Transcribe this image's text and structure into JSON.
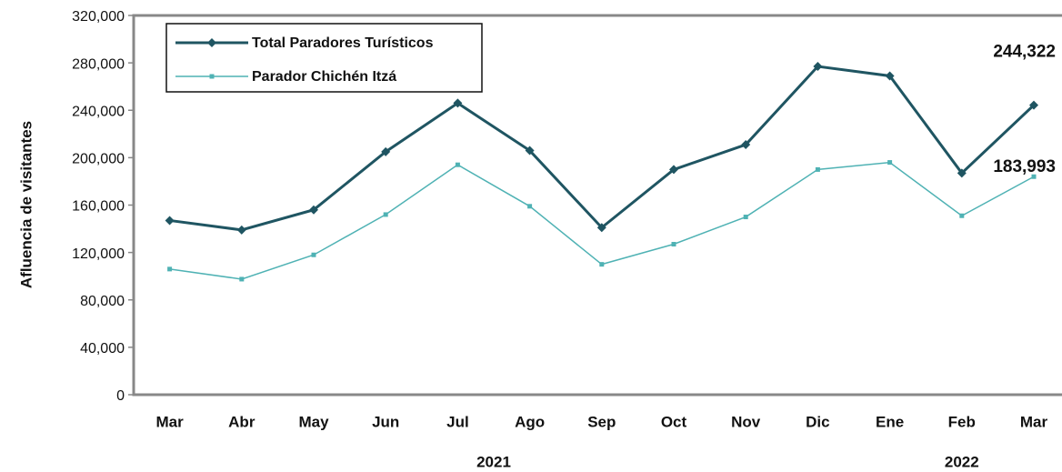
{
  "chart_data": {
    "type": "line",
    "y_label": "Afluencia de visitantes",
    "categories": [
      "Mar",
      "Abr",
      "May",
      "Jun",
      "Jul",
      "Ago",
      "Sep",
      "Oct",
      "Nov",
      "Dic",
      "Ene",
      "Feb",
      "Mar"
    ],
    "x_groups": [
      {
        "label": "2021",
        "span": [
          0,
          9
        ]
      },
      {
        "label": "2022",
        "span": [
          10,
          12
        ]
      }
    ],
    "series": [
      {
        "name": "Total Paradores Turísticos",
        "color": "#1f5562",
        "marker": "diamond",
        "values": [
          147000,
          139000,
          156000,
          205000,
          246000,
          206000,
          141000,
          190000,
          211000,
          277000,
          269000,
          187000,
          244322
        ],
        "value_labels": [
          null,
          null,
          null,
          null,
          null,
          null,
          null,
          null,
          null,
          null,
          null,
          null,
          "244,322"
        ]
      },
      {
        "name": "Parador Chichén Itzá",
        "color": "#4fb2b4",
        "marker": "square",
        "values": [
          106000,
          97500,
          118000,
          152000,
          194000,
          159000,
          110000,
          127000,
          150000,
          190000,
          196000,
          151000,
          183993
        ],
        "value_labels": [
          null,
          null,
          null,
          null,
          null,
          null,
          null,
          null,
          null,
          null,
          null,
          null,
          "183,993"
        ]
      }
    ],
    "ylim": [
      0,
      320000
    ],
    "yticks": [
      0,
      {
        "value": 40000,
        "label": "40,000"
      },
      {
        "value": 80000,
        "label": "80,000"
      },
      {
        "value": 120000,
        "label": "120,000"
      },
      {
        "value": 160000,
        "label": "160,000"
      },
      {
        "value": 200000,
        "label": "200,000"
      },
      {
        "value": 240000,
        "label": "240,000"
      },
      {
        "value": 280000,
        "label": "280,000"
      },
      {
        "value": 320000,
        "label": "320,000"
      }
    ],
    "grid": false,
    "legend": "upper left"
  }
}
